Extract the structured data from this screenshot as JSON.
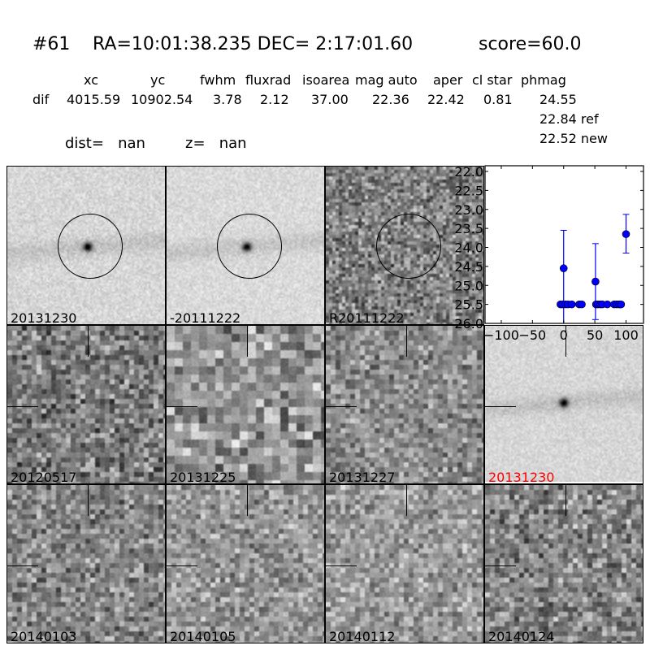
{
  "header": {
    "id": "#61",
    "coords": "RA=10:01:38.235 DEC= 2:17:01.60",
    "score": "score=60.0"
  },
  "table": {
    "columns": [
      "xc",
      "yc",
      "fwhm",
      "fluxrad",
      "isoarea",
      "mag auto",
      "aper",
      "cl star",
      "phmag"
    ],
    "row_label": "dif",
    "values": [
      "4015.59",
      "10902.54",
      "3.78",
      "2.12",
      "37.00",
      "22.36",
      "22.42",
      "0.81",
      "24.55"
    ],
    "ref": "22.84 ref",
    "new": "22.52 new",
    "dist": "dist=   nan",
    "z": "z=   nan"
  },
  "panels": [
    {
      "label": "20131230",
      "label_color": "#000000",
      "marker": "circle"
    },
    {
      "label": "-20111222",
      "label_color": "#000000",
      "marker": "circle"
    },
    {
      "label": "R20111222",
      "label_color": "#000000",
      "marker": "circle"
    },
    {
      "label": "20120517",
      "label_color": "#000000",
      "marker": "ticks"
    },
    {
      "label": "20131225",
      "label_color": "#000000",
      "marker": "ticks"
    },
    {
      "label": "20131227",
      "label_color": "#000000",
      "marker": "ticks"
    },
    {
      "label": "20131230",
      "label_color": "#ff0000",
      "marker": "ticks"
    },
    {
      "label": "20140103",
      "label_color": "#000000",
      "marker": "ticks"
    },
    {
      "label": "20140105",
      "label_color": "#000000",
      "marker": "ticks"
    },
    {
      "label": "20140112",
      "label_color": "#000000",
      "marker": "ticks"
    },
    {
      "label": "20140124",
      "label_color": "#000000",
      "marker": "ticks"
    }
  ],
  "chart_data": {
    "type": "scatter",
    "title": "",
    "xlabel": "",
    "ylabel": "",
    "xlim": [
      -126,
      128
    ],
    "ylim": [
      26.0,
      21.85
    ],
    "y_inverted": true,
    "xticks": [
      "−100",
      "−50",
      "0",
      "50",
      "100"
    ],
    "xtick_values": [
      -100,
      -50,
      0,
      50,
      100
    ],
    "yticks": [
      "22.0",
      "22.5",
      "23.0",
      "23.5",
      "24.0",
      "24.5",
      "25.0",
      "25.5",
      "26.0"
    ],
    "ytick_values": [
      22.0,
      22.5,
      23.0,
      23.5,
      24.0,
      24.5,
      25.0,
      25.5,
      26.0
    ],
    "marker_color": "#0000ff",
    "grid": false,
    "points": [
      {
        "x": 0,
        "y": 24.55,
        "ylo": 23.55,
        "yhi": 26.2
      },
      {
        "x": 51,
        "y": 24.9,
        "ylo": 23.9,
        "yhi": 25.9
      },
      {
        "x": 100,
        "y": 23.65,
        "ylo": 23.13,
        "yhi": 24.15
      },
      {
        "x": -5,
        "y": 25.5,
        "ylo": 25.45,
        "yhi": 25.55
      },
      {
        "x": -2,
        "y": 25.5,
        "ylo": 25.45,
        "yhi": 25.55
      },
      {
        "x": 3,
        "y": 25.5,
        "ylo": 25.45,
        "yhi": 25.55
      },
      {
        "x": 7,
        "y": 25.5,
        "ylo": 25.45,
        "yhi": 25.55
      },
      {
        "x": 13,
        "y": 25.5,
        "ylo": 25.45,
        "yhi": 25.55
      },
      {
        "x": 25,
        "y": 25.5,
        "ylo": 25.45,
        "yhi": 25.55
      },
      {
        "x": 29,
        "y": 25.5,
        "ylo": 25.45,
        "yhi": 25.55
      },
      {
        "x": 52,
        "y": 25.5,
        "ylo": 25.45,
        "yhi": 25.55
      },
      {
        "x": 55,
        "y": 25.5,
        "ylo": 25.45,
        "yhi": 25.55
      },
      {
        "x": 59,
        "y": 25.5,
        "ylo": 25.45,
        "yhi": 25.55
      },
      {
        "x": 62,
        "y": 25.5,
        "ylo": 25.45,
        "yhi": 25.55
      },
      {
        "x": 70,
        "y": 25.5,
        "ylo": 25.45,
        "yhi": 25.55
      },
      {
        "x": 81,
        "y": 25.5,
        "ylo": 25.45,
        "yhi": 25.55
      },
      {
        "x": 85,
        "y": 25.5,
        "ylo": 25.45,
        "yhi": 25.55
      },
      {
        "x": 89,
        "y": 25.5,
        "ylo": 25.45,
        "yhi": 25.55
      },
      {
        "x": 92,
        "y": 25.5,
        "ylo": 25.45,
        "yhi": 25.55
      }
    ]
  }
}
